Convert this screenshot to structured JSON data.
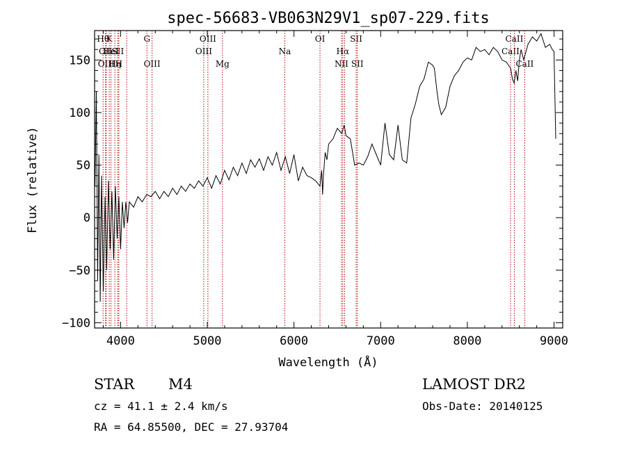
{
  "chart_data": {
    "type": "line",
    "title": "spec-56683-VB063N29V1_sp07-229.fits",
    "xlabel": "Wavelength (Å)",
    "ylabel": "Flux (relative)",
    "xlim": [
      3700,
      9100
    ],
    "ylim": [
      -105,
      178
    ],
    "x_ticks": [
      4000,
      5000,
      6000,
      7000,
      8000,
      9000
    ],
    "x_tick_labels": [
      "4000",
      "5000",
      "6000",
      "7000",
      "8000",
      "9000"
    ],
    "y_ticks": [
      -100,
      -50,
      0,
      50,
      100,
      150
    ],
    "y_tick_labels": [
      "−100",
      "−50",
      "0",
      "50",
      "100",
      "150"
    ],
    "line_color": "#000000",
    "marker_color": "#b00000",
    "series": [
      {
        "name": "flux",
        "x": [
          3705,
          3720,
          3735,
          3750,
          3765,
          3780,
          3800,
          3820,
          3840,
          3860,
          3880,
          3900,
          3920,
          3940,
          3960,
          3980,
          4000,
          4020,
          4040,
          4060,
          4080,
          4100,
          4150,
          4200,
          4250,
          4300,
          4350,
          4400,
          4450,
          4500,
          4550,
          4600,
          4650,
          4700,
          4750,
          4800,
          4850,
          4900,
          4950,
          5000,
          5050,
          5100,
          5150,
          5200,
          5250,
          5300,
          5350,
          5400,
          5450,
          5500,
          5550,
          5600,
          5650,
          5700,
          5750,
          5800,
          5850,
          5900,
          5950,
          6000,
          6050,
          6100,
          6150,
          6200,
          6250,
          6300,
          6320,
          6330,
          6340,
          6360,
          6380,
          6400,
          6450,
          6500,
          6550,
          6580,
          6600,
          6650,
          6700,
          6750,
          6800,
          6850,
          6900,
          6950,
          7000,
          7050,
          7100,
          7150,
          7200,
          7250,
          7300,
          7350,
          7400,
          7450,
          7500,
          7550,
          7600,
          7620,
          7650,
          7670,
          7700,
          7750,
          7800,
          7850,
          7900,
          7950,
          8000,
          8050,
          8100,
          8150,
          8200,
          8250,
          8300,
          8350,
          8400,
          8450,
          8500,
          8520,
          8540,
          8560,
          8580,
          8600,
          8620,
          8650,
          8700,
          8750,
          8800,
          8850,
          8900,
          8950,
          8980,
          9000,
          9020
        ],
        "y": [
          30,
          120,
          -60,
          60,
          -80,
          40,
          -70,
          20,
          -50,
          35,
          -30,
          25,
          -40,
          30,
          -20,
          20,
          -30,
          15,
          -10,
          15,
          -5,
          15,
          10,
          20,
          15,
          22,
          20,
          25,
          18,
          25,
          20,
          28,
          22,
          30,
          25,
          32,
          28,
          35,
          30,
          38,
          28,
          40,
          32,
          45,
          36,
          48,
          40,
          52,
          42,
          55,
          48,
          56,
          45,
          58,
          50,
          62,
          45,
          58,
          42,
          60,
          35,
          48,
          40,
          38,
          35,
          30,
          45,
          22,
          40,
          62,
          55,
          70,
          75,
          85,
          80,
          88,
          78,
          75,
          50,
          52,
          50,
          58,
          70,
          60,
          50,
          90,
          60,
          55,
          88,
          55,
          52,
          95,
          108,
          125,
          132,
          148,
          145,
          142,
          120,
          108,
          98,
          105,
          125,
          135,
          140,
          148,
          152,
          150,
          162,
          158,
          160,
          155,
          162,
          158,
          150,
          148,
          142,
          132,
          128,
          140,
          130,
          150,
          160,
          150,
          165,
          172,
          168,
          175,
          162,
          165,
          160,
          158,
          75
        ]
      }
    ],
    "line_markers": [
      {
        "x": 3798,
        "label": "Hθ",
        "row": 0
      },
      {
        "x": 3826,
        "label": "OII",
        "row": 1
      },
      {
        "x": 3835,
        "label": "OIII",
        "row": 2
      },
      {
        "x": 3869,
        "label": "K",
        "row": 0
      },
      {
        "x": 3889,
        "label": "HeI",
        "row": 1
      },
      {
        "x": 3934,
        "label": "Hη",
        "row": 2
      },
      {
        "x": 3968,
        "label": "SII",
        "row": 1
      },
      {
        "x": 3980,
        "label": "H",
        "row": 2
      },
      {
        "x": 4070,
        "label": "",
        "row": -1
      },
      {
        "x": 4304,
        "label": "G",
        "row": 0
      },
      {
        "x": 4363,
        "label": "OIII",
        "row": 2
      },
      {
        "x": 4959,
        "label": "OIII",
        "row": 1
      },
      {
        "x": 5007,
        "label": "OIII",
        "row": 0
      },
      {
        "x": 5175,
        "label": "Mg",
        "row": 2
      },
      {
        "x": 5894,
        "label": "Na",
        "row": 1
      },
      {
        "x": 6300,
        "label": "OI",
        "row": 0
      },
      {
        "x": 6548,
        "label": "NII",
        "row": 2
      },
      {
        "x": 6563,
        "label": "Hα",
        "row": 1
      },
      {
        "x": 6584,
        "label": "",
        "row": -1
      },
      {
        "x": 6717,
        "label": "SII",
        "row": 0
      },
      {
        "x": 6731,
        "label": "SII",
        "row": 2
      },
      {
        "x": 8498,
        "label": "CaII",
        "row": 1
      },
      {
        "x": 8542,
        "label": "CaII",
        "row": 0
      },
      {
        "x": 8662,
        "label": "CaII",
        "row": 2
      }
    ]
  },
  "info": {
    "object_class": "STAR",
    "subclass": "M4",
    "survey": "LAMOST DR2",
    "redshift_line": "cz = 41.1 ± 2.4 km/s",
    "obs_date_line": "Obs-Date: 20140125",
    "coords_line": "RA =  64.85500, DEC =  27.93704"
  }
}
